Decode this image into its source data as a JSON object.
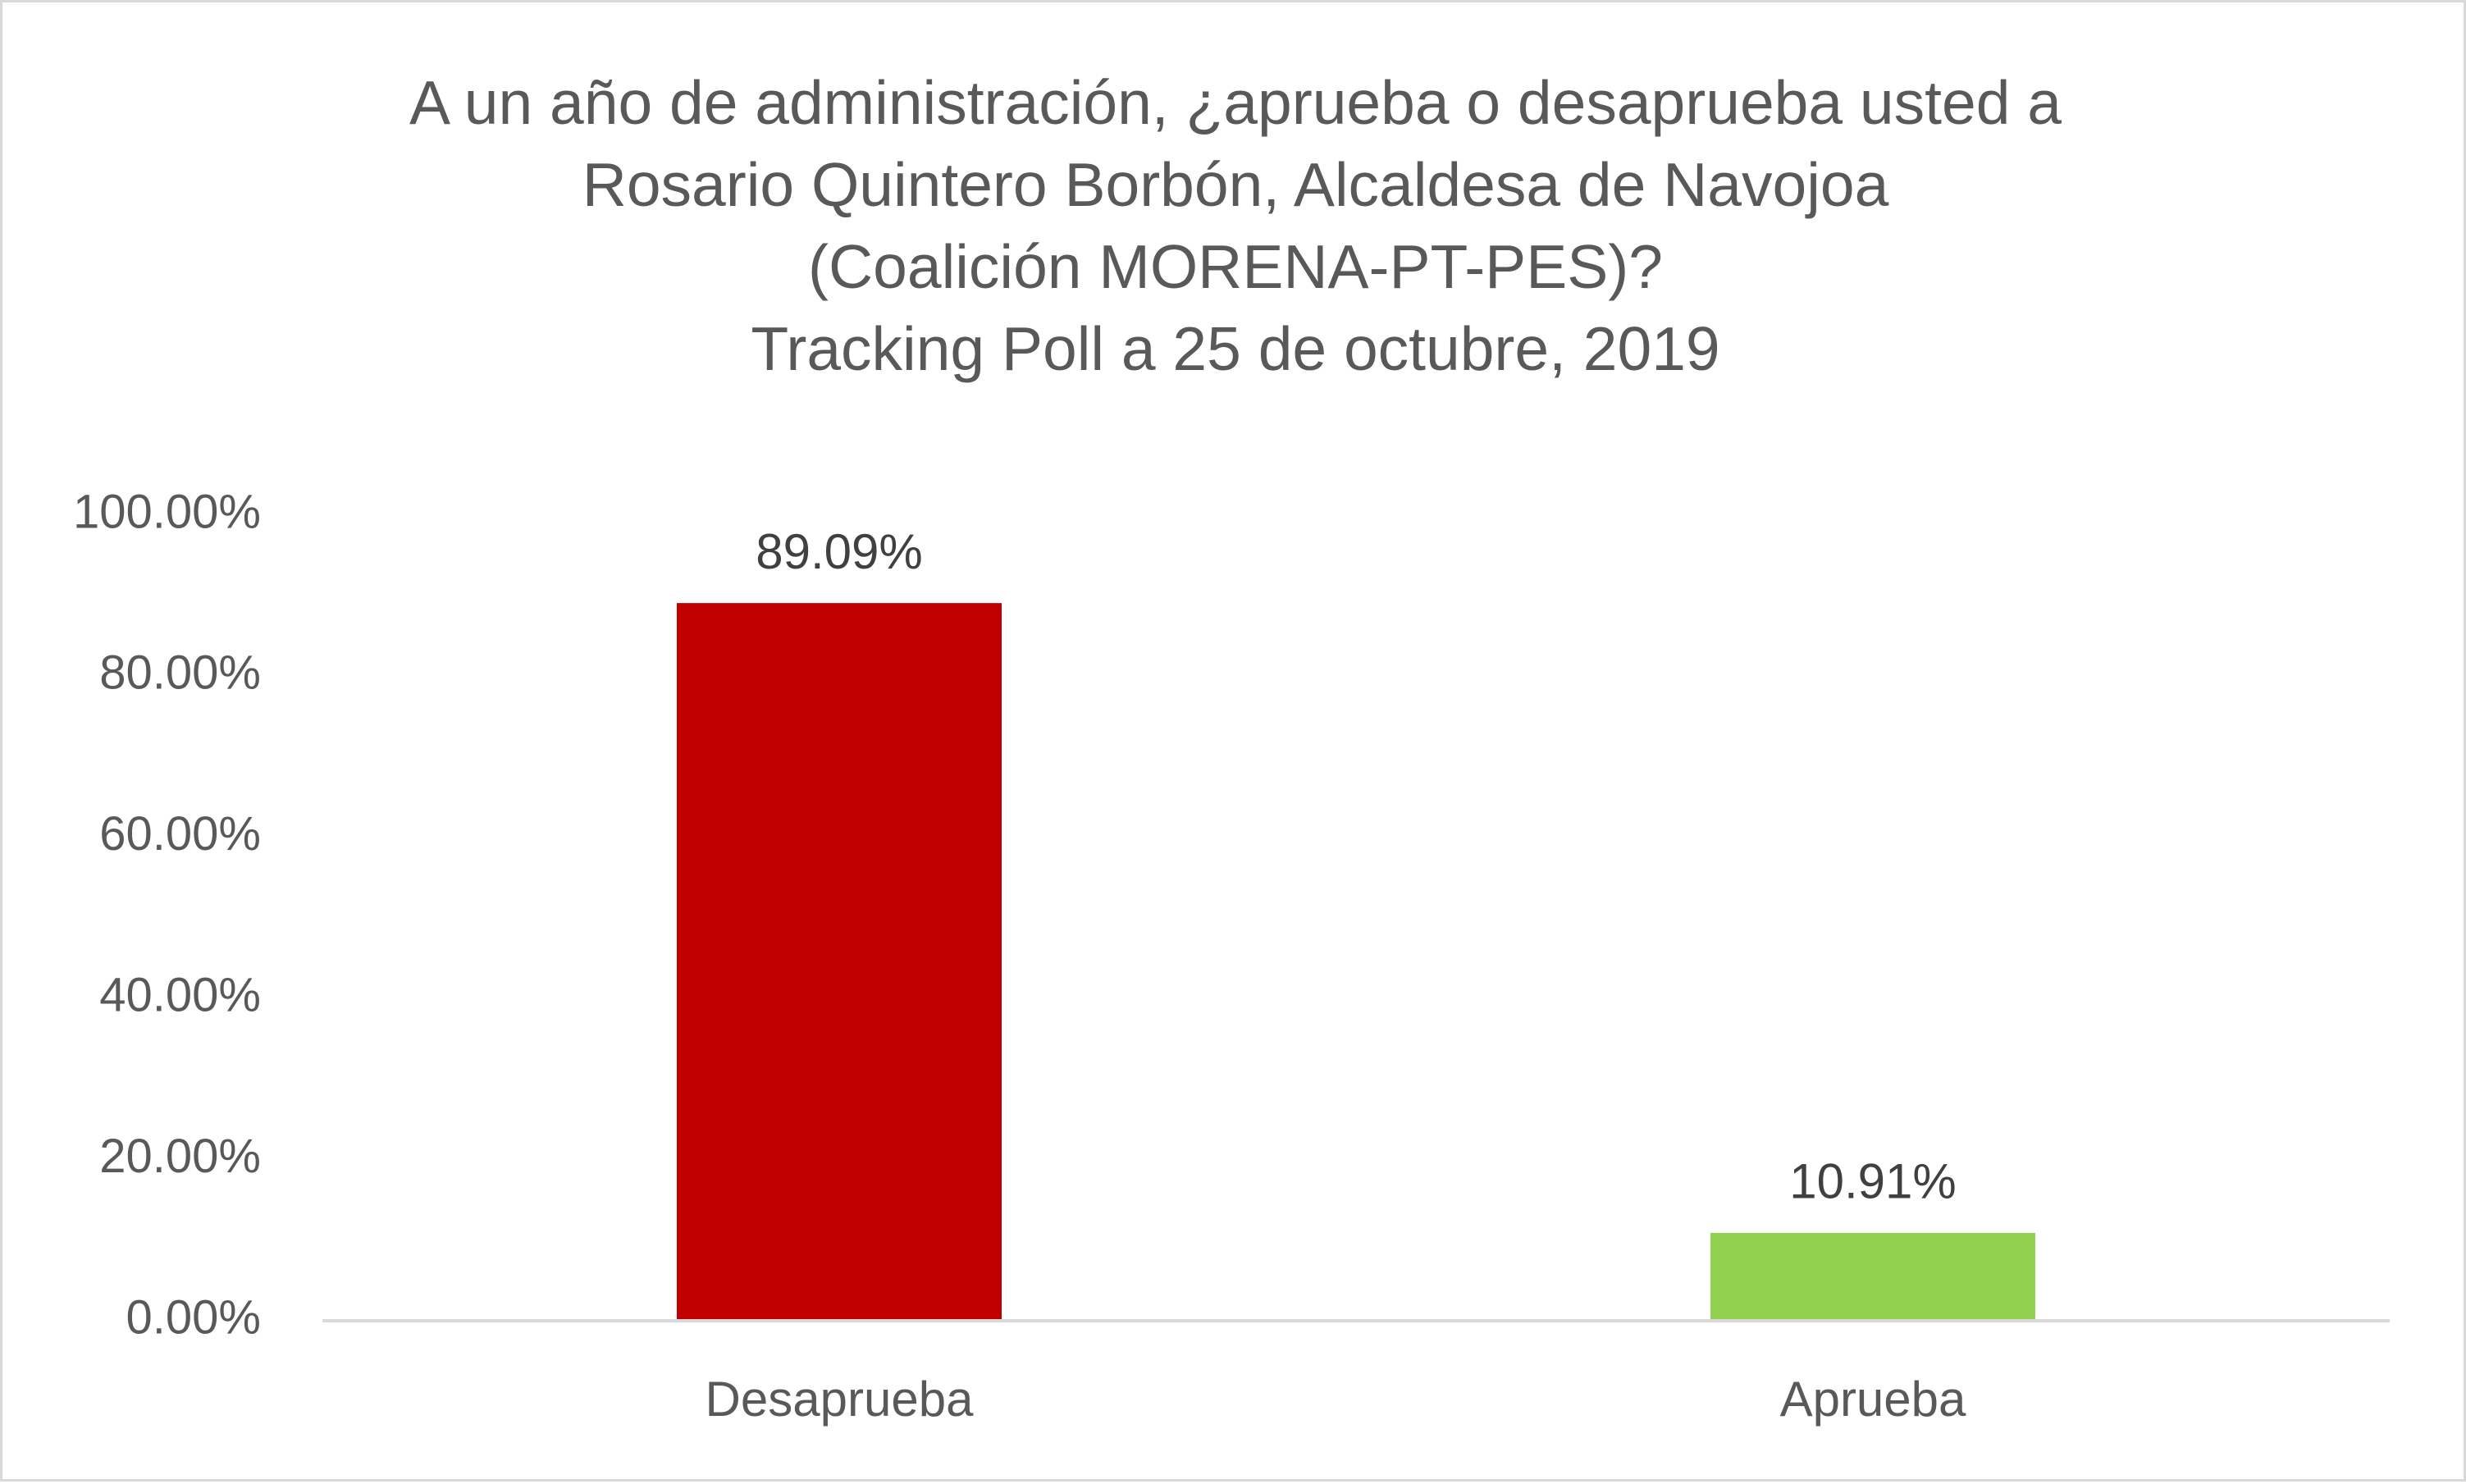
{
  "chart_data": {
    "type": "bar",
    "title_lines": [
      "A un año de administración, ¿aprueba o desaprueba usted a",
      "Rosario Quintero Borbón, Alcaldesa de Navojoa",
      "(Coalición MORENA-PT-PES)?",
      "Tracking Poll a 25 de octubre, 2019"
    ],
    "categories": [
      "Desaprueba",
      "Aprueba"
    ],
    "values": [
      89.09,
      10.91
    ],
    "data_labels": [
      "89.09%",
      "10.91%"
    ],
    "bar_colors": [
      "#c00000",
      "#92d050"
    ],
    "ylim": [
      0,
      100
    ],
    "yticks": [
      0,
      20,
      40,
      60,
      80,
      100
    ],
    "ytick_labels": [
      "0.00%",
      "20.00%",
      "40.00%",
      "60.00%",
      "80.00%",
      "100.00%"
    ],
    "xlabel": "",
    "ylabel": "",
    "grid": false,
    "legend": "none",
    "colors": {
      "text": "#595959",
      "data_label": "#404040",
      "axis_line": "#d9d9d9",
      "border": "#d9d9d9"
    }
  }
}
